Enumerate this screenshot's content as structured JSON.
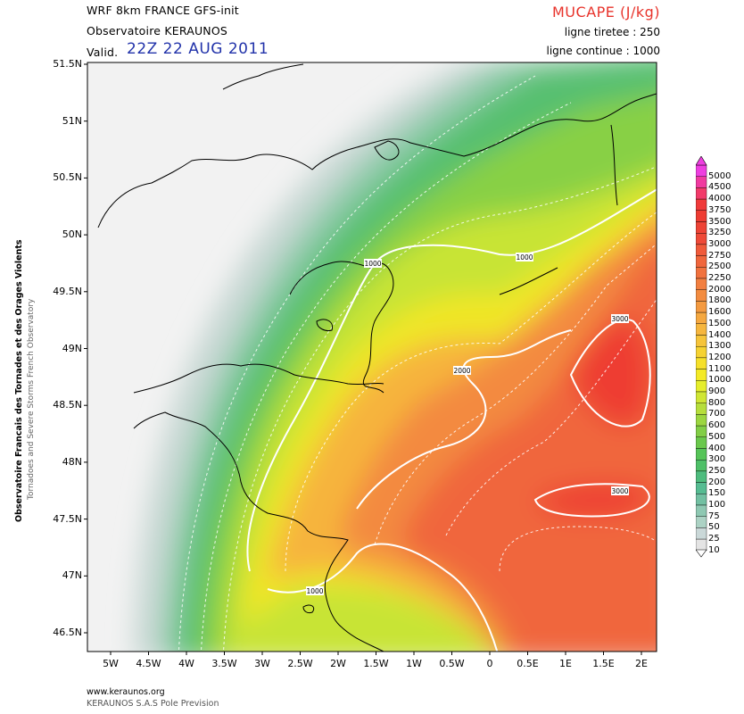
{
  "header": {
    "model": "WRF 8km FRANCE   GFS-init",
    "observatory": "Observatoire KERAUNOS",
    "valid_label": "Valid.",
    "valid_date": "22Z 22 AUG 2011",
    "product": "MUCAPE (J/kg)",
    "dashed_note": "ligne tiretee : 250",
    "solid_note": "ligne continue : 1000"
  },
  "axes": {
    "lat_labels": [
      "51.5N",
      "51N",
      "50.5N",
      "50N",
      "49.5N",
      "49N",
      "48.5N",
      "48N",
      "47.5N",
      "47N",
      "46.5N"
    ],
    "lon_labels": [
      "5W",
      "4.5W",
      "4W",
      "3.5W",
      "3W",
      "2.5W",
      "2W",
      "1.5W",
      "1W",
      "0.5W",
      "0",
      "0.5E",
      "1E",
      "1.5E",
      "2E"
    ]
  },
  "contour_labels": [
    {
      "text": "1000"
    },
    {
      "text": "1000"
    },
    {
      "text": "2000"
    },
    {
      "text": "3000"
    },
    {
      "text": "3000"
    },
    {
      "text": "1000"
    }
  ],
  "legend": {
    "levels": [
      "5000",
      "4500",
      "4000",
      "3750",
      "3500",
      "3250",
      "3000",
      "2750",
      "2500",
      "2250",
      "2000",
      "1800",
      "1600",
      "1500",
      "1400",
      "1300",
      "1200",
      "1100",
      "1000",
      "900",
      "800",
      "700",
      "600",
      "500",
      "400",
      "300",
      "250",
      "200",
      "150",
      "100",
      "75",
      "50",
      "25",
      "10"
    ],
    "colors": [
      "#ee3ee0",
      "#f03aa0",
      "#f23a6a",
      "#f03a3a",
      "#ee3c33",
      "#ee4436",
      "#ef4a38",
      "#f05a3a",
      "#f0663c",
      "#f1723e",
      "#f27f40",
      "#f38c40",
      "#f49a40",
      "#f5a840",
      "#f6b63e",
      "#f6c43a",
      "#f6d232",
      "#f6e02a",
      "#f4ea26",
      "#e6ee2c",
      "#d0e634",
      "#b6de3c",
      "#9cd640",
      "#82ce46",
      "#6ac84c",
      "#56c458",
      "#4ec068",
      "#4ebc7e",
      "#56bc92",
      "#72c0a2",
      "#8ec8b2",
      "#acd2c4",
      "#cad8d8",
      "#e4e4e4"
    ]
  },
  "footer": {
    "url": "www.keraunos.org",
    "company": "KERAUNOS S.A.S Pole Prevision"
  },
  "sidebar": {
    "title": "Observatoire Francais des Tornades et des Orages Violents",
    "subtitle": "Tornadoes and Severe Storms French Observatory"
  }
}
